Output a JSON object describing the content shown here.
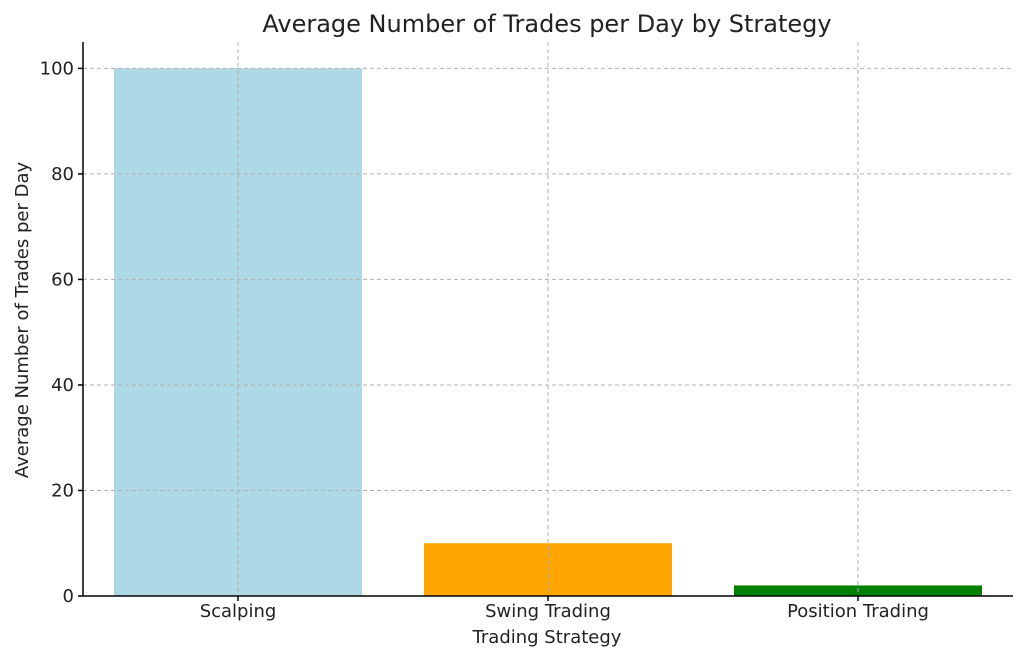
{
  "chart_data": {
    "type": "bar",
    "title": "Average Number of Trades per Day by Strategy",
    "xlabel": "Trading Strategy",
    "ylabel": "Average Number of Trades per Day",
    "categories": [
      "Scalping",
      "Swing Trading",
      "Position Trading"
    ],
    "values": [
      100,
      10,
      2
    ],
    "colors": [
      "#add8e6",
      "#ffa500",
      "#008000"
    ],
    "ylim": [
      0,
      105
    ],
    "yticks": [
      0,
      20,
      40,
      60,
      80,
      100
    ],
    "grid": true,
    "legend": "none"
  }
}
